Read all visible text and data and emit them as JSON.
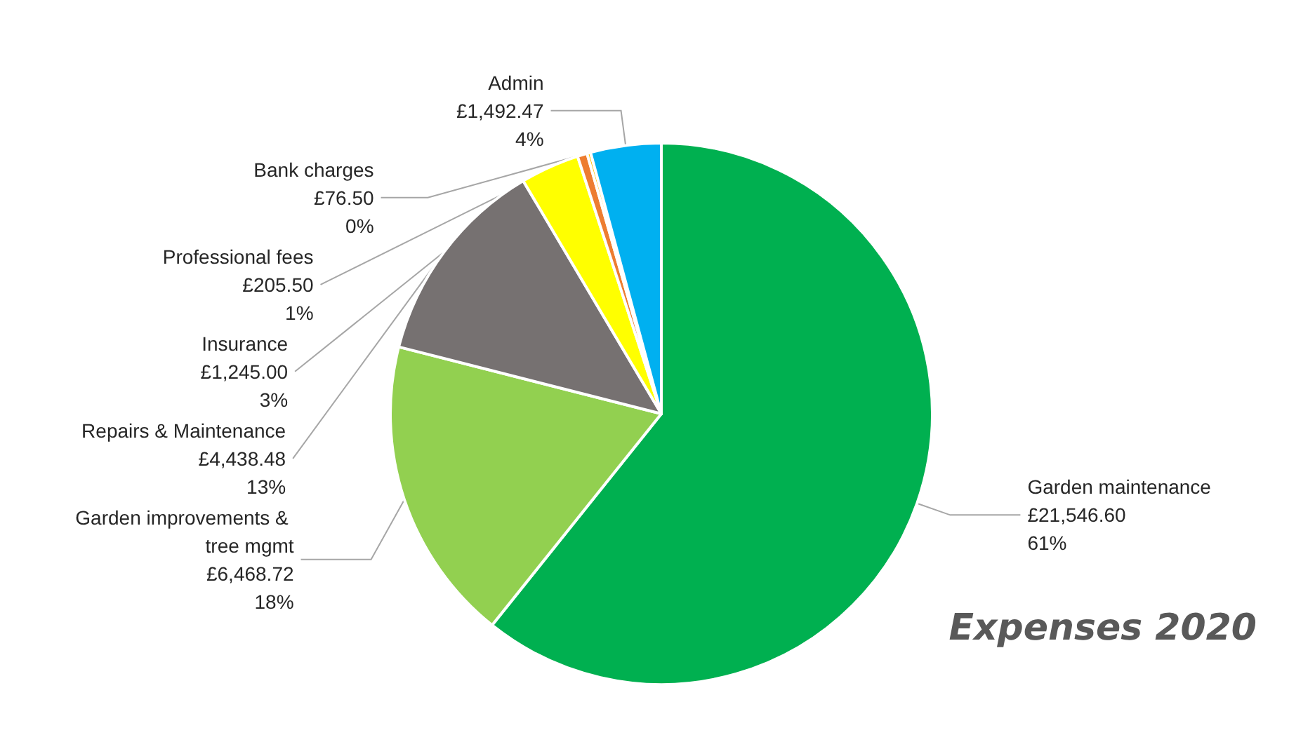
{
  "chart_data": {
    "type": "pie",
    "title": "Expenses 2020",
    "categories": [
      "Garden maintenance",
      "Garden improvements & tree mgmt",
      "Repairs & Maintenance",
      "Insurance",
      "Professional fees",
      "Bank charges",
      "Admin"
    ],
    "values": [
      21546.6,
      6468.72,
      4438.48,
      1245.0,
      205.5,
      76.5,
      1492.47
    ],
    "value_labels": [
      "£21,546.60\n61%",
      "£6,468.72\n18%",
      "£4,438.48\n13%",
      "£1,245.00\n3%",
      "£205.50\n1%",
      "£76.50\n0%",
      "£1,492.47\n4%"
    ],
    "colors": [
      "#00b050",
      "#92d050",
      "#767171",
      "#ffff00",
      "#ed7d31",
      "#ffc000",
      "#00b0f0"
    ],
    "legend": false
  }
}
